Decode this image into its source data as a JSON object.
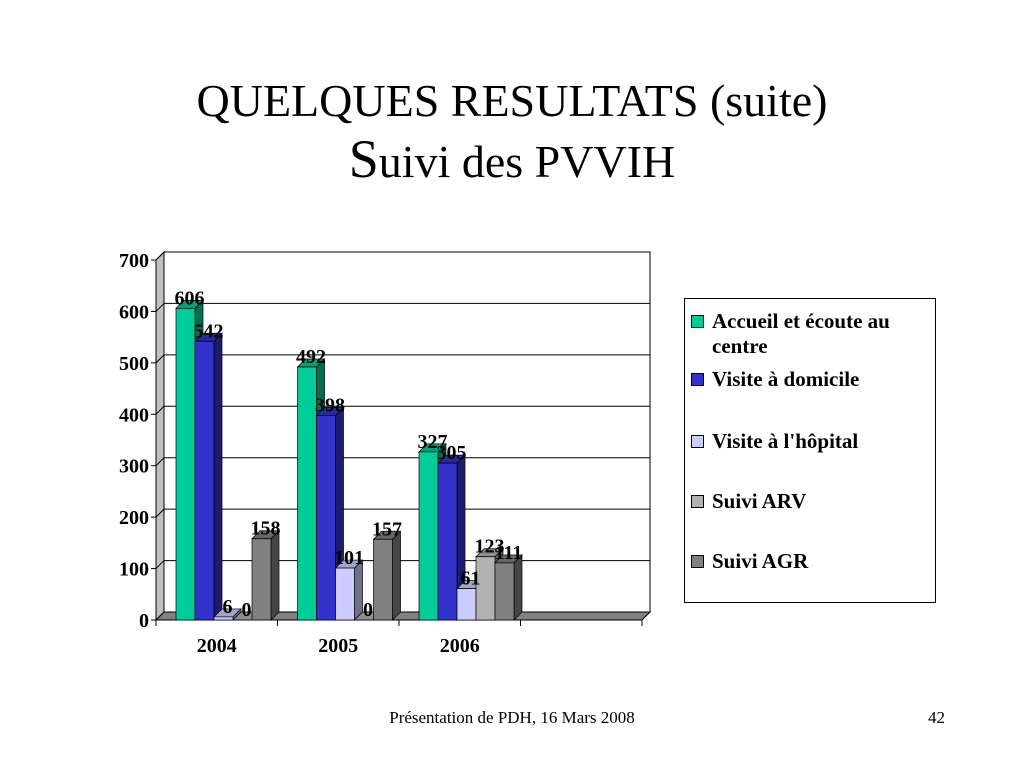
{
  "slide": {
    "title_line1": "QUELQUES RESULTATS (suite)",
    "title_line2_big": "S",
    "title_line2_rest": "uivi des PVVIH",
    "footer": "Présentation de PDH, 16 Mars 2008",
    "page_number": "42"
  },
  "chart_data": {
    "type": "bar",
    "title": "",
    "xlabel": "",
    "ylabel": "",
    "categories": [
      "2004",
      "2005",
      "2006"
    ],
    "ylim": [
      0,
      700
    ],
    "yticks": [
      0,
      100,
      200,
      300,
      400,
      500,
      600,
      700
    ],
    "grid": true,
    "legend_position": "right",
    "series": [
      {
        "name": "Accueil et écoute au centre",
        "color": "#00cc99",
        "values": [
          606,
          492,
          327
        ]
      },
      {
        "name": "Visite à domicile",
        "color": "#3333cc",
        "values": [
          542,
          398,
          305
        ]
      },
      {
        "name": "Visite à l'hôpital",
        "color": "#ccccff",
        "values": [
          6,
          101,
          61
        ]
      },
      {
        "name": "Suivi ARV",
        "color": "#b2b2b2",
        "values": [
          0,
          0,
          123
        ]
      },
      {
        "name": "Suivi AGR",
        "color": "#808080",
        "values": [
          158,
          157,
          111
        ]
      }
    ]
  }
}
